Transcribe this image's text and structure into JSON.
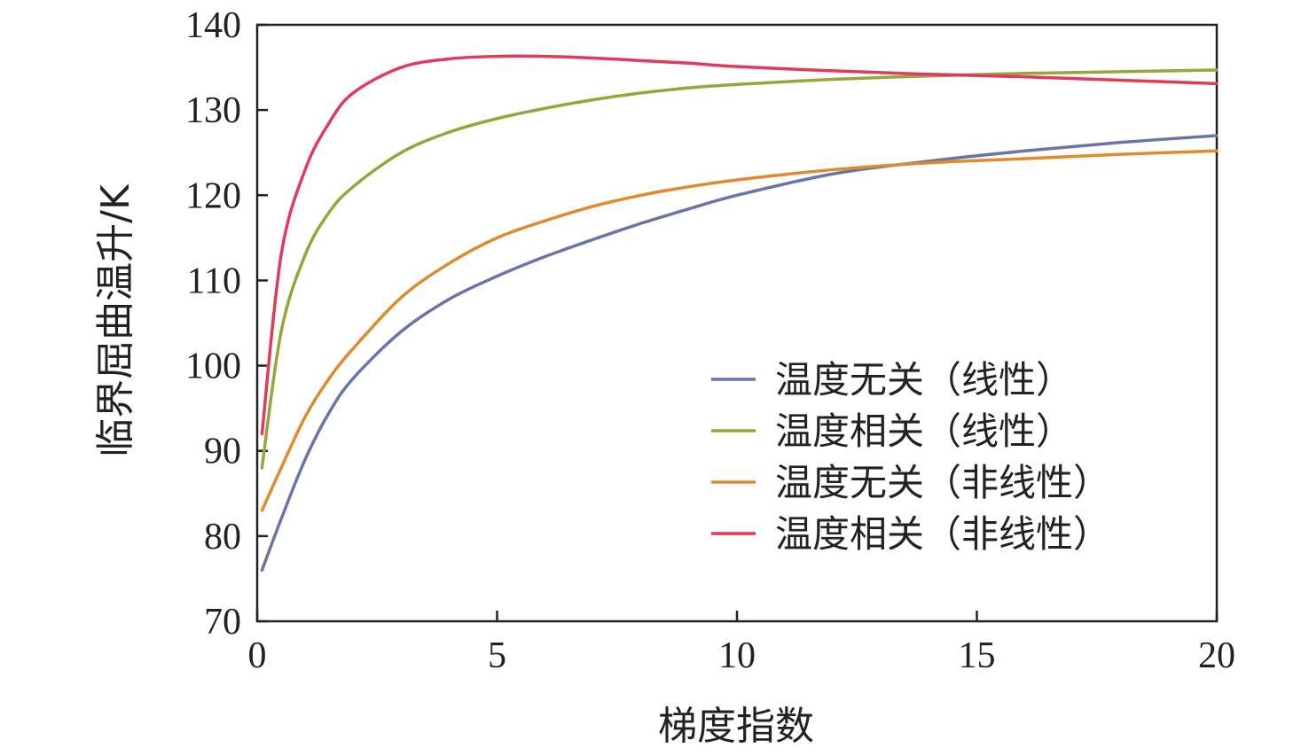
{
  "chart_data": {
    "type": "line",
    "title": "",
    "xlabel": "梯度指数",
    "ylabel": "临界屈曲温升/K",
    "xlim": [
      0,
      20
    ],
    "ylim": [
      70,
      140
    ],
    "x_ticks": [
      "0",
      "5",
      "10",
      "15",
      "20"
    ],
    "y_ticks": [
      "70",
      "80",
      "90",
      "100",
      "110",
      "120",
      "130",
      "140"
    ],
    "grid": false,
    "legend_position": "center-right",
    "series": [
      {
        "name": "温度无关（线性）",
        "color": "#6a74a8",
        "x": [
          0.1,
          0.5,
          1,
          1.5,
          2,
          3,
          4,
          5,
          6,
          7,
          8,
          9,
          10,
          12,
          14,
          16,
          18,
          20
        ],
        "values": [
          76,
          82,
          89,
          94.5,
          98.5,
          104,
          107.8,
          110.5,
          112.8,
          114.8,
          116.7,
          118.4,
          120,
          122.5,
          124,
          125.2,
          126.2,
          127
        ]
      },
      {
        "name": "温度相关（线性）",
        "color": "#9ba33c",
        "x": [
          0.1,
          0.5,
          1,
          1.5,
          2,
          3,
          4,
          5,
          6,
          7,
          8,
          9,
          10,
          12,
          14,
          16,
          18,
          20
        ],
        "values": [
          88,
          104,
          113,
          118,
          121,
          125,
          127.4,
          129,
          130.2,
          131.2,
          132,
          132.6,
          133,
          133.6,
          134,
          134.3,
          134.5,
          134.7
        ]
      },
      {
        "name": "温度无关（非线性）",
        "color": "#e08a2e",
        "x": [
          0.1,
          0.5,
          1,
          1.5,
          2,
          3,
          4,
          5,
          6,
          7,
          8,
          9,
          10,
          12,
          14,
          16,
          18,
          20
        ],
        "values": [
          83,
          88,
          94,
          98.5,
          102,
          108,
          112,
          115,
          117,
          118.7,
          120,
          121,
          121.8,
          123,
          123.8,
          124.3,
          124.8,
          125.2
        ]
      },
      {
        "name": "温度相关（非线性）",
        "color": "#e23a5a",
        "x": [
          0.1,
          0.5,
          1,
          1.5,
          2,
          3,
          4,
          5,
          6,
          7,
          8,
          9,
          10,
          12,
          14,
          16,
          18,
          20
        ],
        "values": [
          92,
          113,
          123,
          128.5,
          132,
          135,
          136,
          136.3,
          136.3,
          136.1,
          135.8,
          135.5,
          135.1,
          134.6,
          134.2,
          133.9,
          133.5,
          133.1
        ]
      }
    ]
  }
}
